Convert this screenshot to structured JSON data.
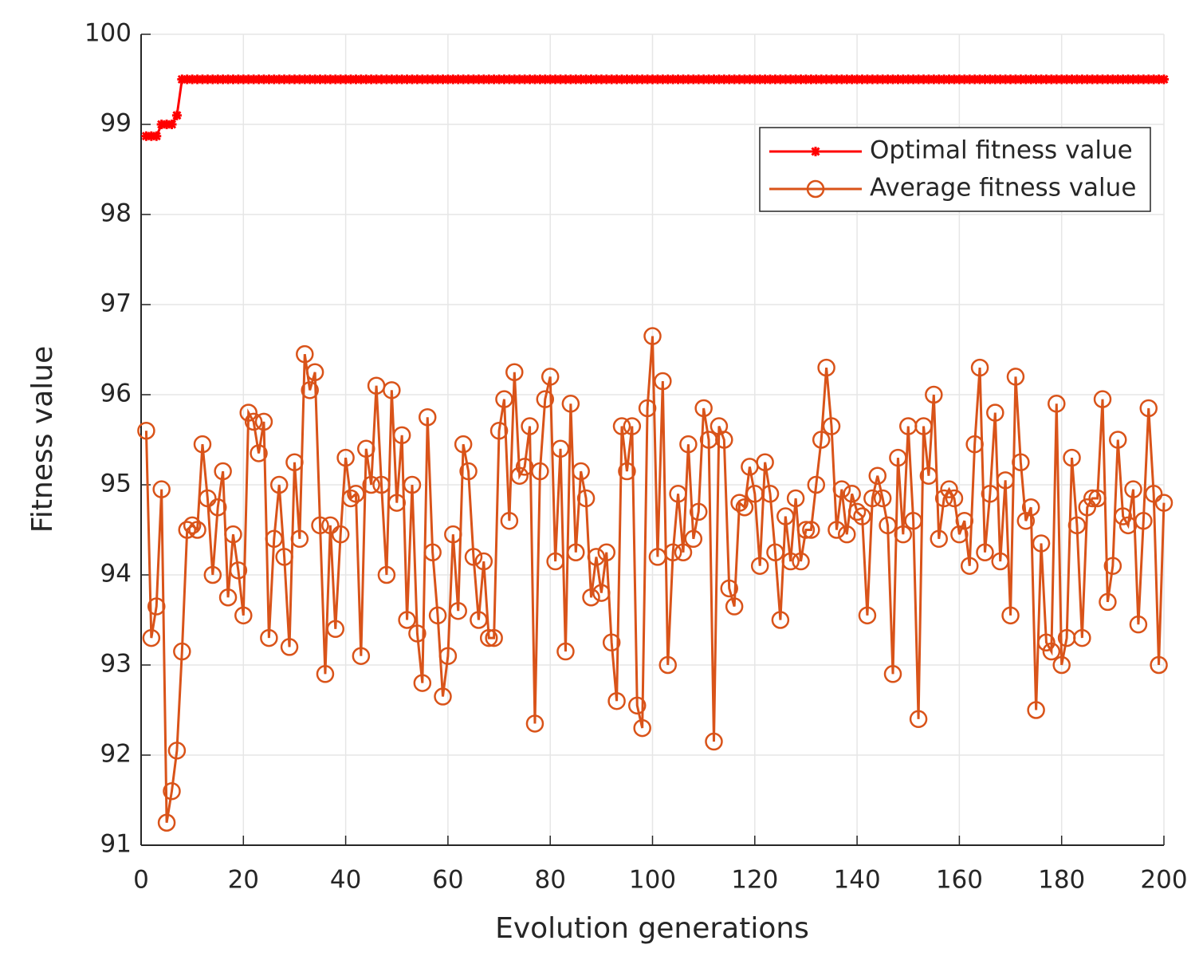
{
  "chart_data": {
    "type": "line",
    "xlabel": "Evolution generations",
    "ylabel": "Fitness value",
    "xlim": [
      0,
      200
    ],
    "xticks": [
      0,
      20,
      40,
      60,
      80,
      100,
      120,
      140,
      160,
      180,
      200
    ],
    "ylim": [
      91,
      100
    ],
    "yticks": [
      91,
      92,
      93,
      94,
      95,
      96,
      97,
      98,
      99,
      100
    ],
    "grid": true,
    "legend": "northeast",
    "x": [
      1,
      2,
      3,
      4,
      5,
      6,
      7,
      8,
      9,
      10,
      11,
      12,
      13,
      14,
      15,
      16,
      17,
      18,
      19,
      20,
      21,
      22,
      23,
      24,
      25,
      26,
      27,
      28,
      29,
      30,
      31,
      32,
      33,
      34,
      35,
      36,
      37,
      38,
      39,
      40,
      41,
      42,
      43,
      44,
      45,
      46,
      47,
      48,
      49,
      50,
      51,
      52,
      53,
      54,
      55,
      56,
      57,
      58,
      59,
      60,
      61,
      62,
      63,
      64,
      65,
      66,
      67,
      68,
      69,
      70,
      71,
      72,
      73,
      74,
      75,
      76,
      77,
      78,
      79,
      80,
      81,
      82,
      83,
      84,
      85,
      86,
      87,
      88,
      89,
      90,
      91,
      92,
      93,
      94,
      95,
      96,
      97,
      98,
      99,
      100,
      101,
      102,
      103,
      104,
      105,
      106,
      107,
      108,
      109,
      110,
      111,
      112,
      113,
      114,
      115,
      116,
      117,
      118,
      119,
      120,
      121,
      122,
      123,
      124,
      125,
      126,
      127,
      128,
      129,
      130,
      131,
      132,
      133,
      134,
      135,
      136,
      137,
      138,
      139,
      140,
      141,
      142,
      143,
      144,
      145,
      146,
      147,
      148,
      149,
      150,
      151,
      152,
      153,
      154,
      155,
      156,
      157,
      158,
      159,
      160,
      161,
      162,
      163,
      164,
      165,
      166,
      167,
      168,
      169,
      170,
      171,
      172,
      173,
      174,
      175,
      176,
      177,
      178,
      179,
      180,
      181,
      182,
      183,
      184,
      185,
      186,
      187,
      188,
      189,
      190,
      191,
      192,
      193,
      194,
      195,
      196,
      197,
      198,
      199,
      200
    ],
    "series": [
      {
        "name": "Optimal fitness value",
        "color": "#ff0000",
        "marker": "asterisk",
        "values": [
          98.87,
          98.87,
          98.87,
          99.0,
          99.0,
          99.0,
          99.1,
          99.5,
          99.5,
          99.5,
          99.5,
          99.5,
          99.5,
          99.5,
          99.5,
          99.5,
          99.5,
          99.5,
          99.5,
          99.5,
          99.5,
          99.5,
          99.5,
          99.5,
          99.5,
          99.5,
          99.5,
          99.5,
          99.5,
          99.5,
          99.5,
          99.5,
          99.5,
          99.5,
          99.5,
          99.5,
          99.5,
          99.5,
          99.5,
          99.5,
          99.5,
          99.5,
          99.5,
          99.5,
          99.5,
          99.5,
          99.5,
          99.5,
          99.5,
          99.5,
          99.5,
          99.5,
          99.5,
          99.5,
          99.5,
          99.5,
          99.5,
          99.5,
          99.5,
          99.5,
          99.5,
          99.5,
          99.5,
          99.5,
          99.5,
          99.5,
          99.5,
          99.5,
          99.5,
          99.5,
          99.5,
          99.5,
          99.5,
          99.5,
          99.5,
          99.5,
          99.5,
          99.5,
          99.5,
          99.5,
          99.5,
          99.5,
          99.5,
          99.5,
          99.5,
          99.5,
          99.5,
          99.5,
          99.5,
          99.5,
          99.5,
          99.5,
          99.5,
          99.5,
          99.5,
          99.5,
          99.5,
          99.5,
          99.5,
          99.5,
          99.5,
          99.5,
          99.5,
          99.5,
          99.5,
          99.5,
          99.5,
          99.5,
          99.5,
          99.5,
          99.5,
          99.5,
          99.5,
          99.5,
          99.5,
          99.5,
          99.5,
          99.5,
          99.5,
          99.5,
          99.5,
          99.5,
          99.5,
          99.5,
          99.5,
          99.5,
          99.5,
          99.5,
          99.5,
          99.5,
          99.5,
          99.5,
          99.5,
          99.5,
          99.5,
          99.5,
          99.5,
          99.5,
          99.5,
          99.5,
          99.5,
          99.5,
          99.5,
          99.5,
          99.5,
          99.5,
          99.5,
          99.5,
          99.5,
          99.5,
          99.5,
          99.5,
          99.5,
          99.5,
          99.5,
          99.5,
          99.5,
          99.5,
          99.5,
          99.5,
          99.5,
          99.5,
          99.5,
          99.5,
          99.5,
          99.5,
          99.5,
          99.5,
          99.5,
          99.5,
          99.5,
          99.5,
          99.5,
          99.5,
          99.5,
          99.5,
          99.5,
          99.5,
          99.5,
          99.5,
          99.5,
          99.5,
          99.5,
          99.5,
          99.5,
          99.5,
          99.5,
          99.5,
          99.5,
          99.5,
          99.5,
          99.5,
          99.5,
          99.5,
          99.5,
          99.5,
          99.5,
          99.5,
          99.5,
          99.5
        ]
      },
      {
        "name": "Average fitness value",
        "color": "#d95319",
        "marker": "circle",
        "values": [
          95.6,
          93.3,
          93.65,
          94.95,
          91.25,
          91.6,
          92.05,
          93.15,
          94.5,
          94.55,
          94.5,
          95.45,
          94.85,
          94.0,
          94.75,
          95.15,
          93.75,
          94.45,
          94.05,
          93.55,
          95.8,
          95.7,
          95.35,
          95.7,
          93.3,
          94.4,
          95.0,
          94.2,
          93.2,
          95.25,
          94.4,
          96.45,
          96.05,
          96.25,
          94.55,
          92.9,
          94.55,
          93.4,
          94.45,
          95.3,
          94.85,
          94.9,
          93.1,
          95.4,
          95.0,
          96.1,
          95.0,
          94.0,
          96.05,
          94.8,
          95.55,
          93.5,
          95.0,
          93.35,
          92.8,
          95.75,
          94.25,
          93.55,
          92.65,
          93.1,
          94.45,
          93.6,
          95.45,
          95.15,
          94.2,
          93.5,
          94.15,
          93.3,
          93.3,
          95.6,
          95.95,
          94.6,
          96.25,
          95.1,
          95.2,
          95.65,
          92.35,
          95.15,
          95.95,
          96.2,
          94.15,
          95.4,
          93.15,
          95.9,
          94.25,
          95.15,
          94.85,
          93.75,
          94.2,
          93.8,
          94.25,
          93.25,
          92.6,
          95.65,
          95.15,
          95.65,
          92.55,
          92.3,
          95.85,
          96.65,
          94.2,
          96.15,
          93.0,
          94.25,
          94.9,
          94.25,
          95.45,
          94.4,
          94.7,
          95.85,
          95.5,
          92.15,
          95.65,
          95.5,
          93.85,
          93.65,
          94.8,
          94.75,
          95.2,
          94.9,
          94.1,
          95.25,
          94.9,
          94.25,
          93.5,
          94.65,
          94.15,
          94.85,
          94.15,
          94.5,
          94.5,
          95.0,
          95.5,
          96.3,
          95.65,
          94.5,
          94.95,
          94.45,
          94.9,
          94.7,
          94.65,
          93.55,
          94.85,
          95.1,
          94.85,
          94.55,
          92.9,
          95.3,
          94.45,
          95.65,
          94.6,
          92.4,
          95.65,
          95.1,
          96.0,
          94.4,
          94.85,
          94.95,
          94.85,
          94.45,
          94.6,
          94.1,
          95.45,
          96.3,
          94.25,
          94.9,
          95.8,
          94.15,
          95.05,
          93.55,
          96.2,
          95.25,
          94.6,
          94.75,
          92.5,
          94.35,
          93.25,
          93.15,
          95.9,
          93.0,
          93.3,
          95.3,
          94.55,
          93.3,
          94.75,
          94.85,
          94.85,
          95.95,
          93.7,
          94.1,
          95.5,
          94.65,
          94.55,
          94.95,
          93.45,
          94.6,
          95.85,
          94.9,
          93.0,
          94.8
        ]
      }
    ]
  }
}
